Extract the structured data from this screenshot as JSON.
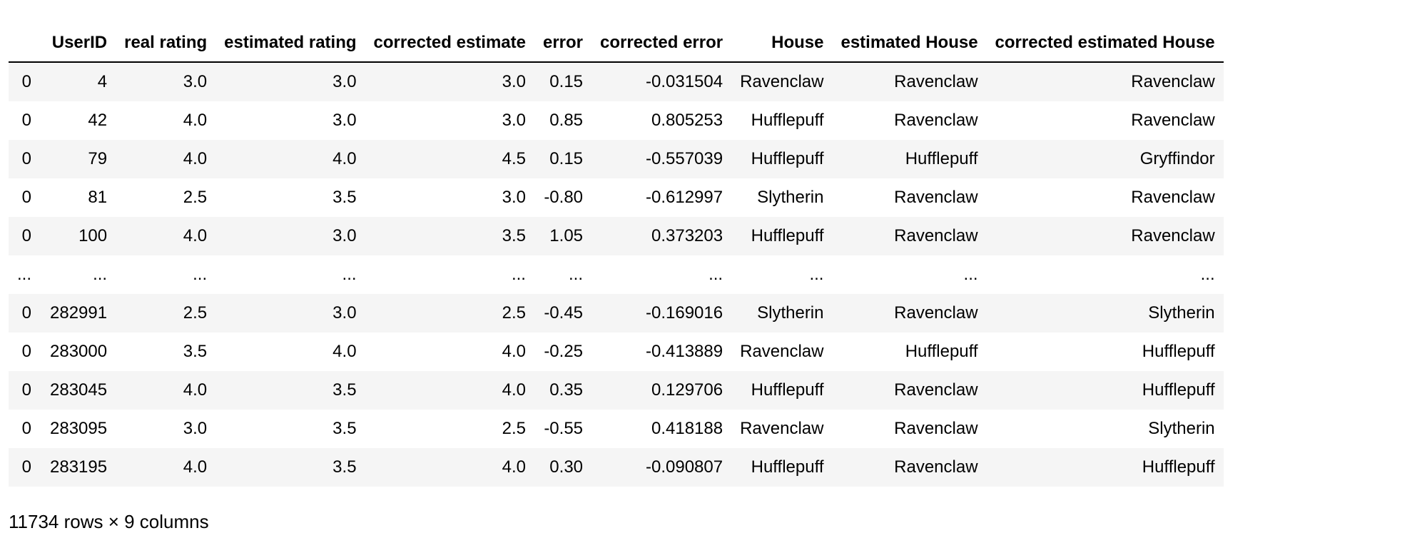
{
  "table": {
    "index_header": "",
    "columns": [
      "UserID",
      "real rating",
      "estimated rating",
      "corrected estimate",
      "error",
      "corrected error",
      "House",
      "estimated House",
      "corrected estimated House"
    ],
    "rows": [
      {
        "index": "0",
        "cells": [
          "4",
          "3.0",
          "3.0",
          "3.0",
          "0.15",
          "-0.031504",
          "Ravenclaw",
          "Ravenclaw",
          "Ravenclaw"
        ]
      },
      {
        "index": "0",
        "cells": [
          "42",
          "4.0",
          "3.0",
          "3.0",
          "0.85",
          "0.805253",
          "Hufflepuff",
          "Ravenclaw",
          "Ravenclaw"
        ]
      },
      {
        "index": "0",
        "cells": [
          "79",
          "4.0",
          "4.0",
          "4.5",
          "0.15",
          "-0.557039",
          "Hufflepuff",
          "Hufflepuff",
          "Gryffindor"
        ]
      },
      {
        "index": "0",
        "cells": [
          "81",
          "2.5",
          "3.5",
          "3.0",
          "-0.80",
          "-0.612997",
          "Slytherin",
          "Ravenclaw",
          "Ravenclaw"
        ]
      },
      {
        "index": "0",
        "cells": [
          "100",
          "4.0",
          "3.0",
          "3.5",
          "1.05",
          "0.373203",
          "Hufflepuff",
          "Ravenclaw",
          "Ravenclaw"
        ]
      },
      {
        "index": "...",
        "cells": [
          "...",
          "...",
          "...",
          "...",
          "...",
          "...",
          "...",
          "...",
          "..."
        ]
      },
      {
        "index": "0",
        "cells": [
          "282991",
          "2.5",
          "3.0",
          "2.5",
          "-0.45",
          "-0.169016",
          "Slytherin",
          "Ravenclaw",
          "Slytherin"
        ]
      },
      {
        "index": "0",
        "cells": [
          "283000",
          "3.5",
          "4.0",
          "4.0",
          "-0.25",
          "-0.413889",
          "Ravenclaw",
          "Hufflepuff",
          "Hufflepuff"
        ]
      },
      {
        "index": "0",
        "cells": [
          "283045",
          "4.0",
          "3.5",
          "4.0",
          "0.35",
          "0.129706",
          "Hufflepuff",
          "Ravenclaw",
          "Hufflepuff"
        ]
      },
      {
        "index": "0",
        "cells": [
          "283095",
          "3.0",
          "3.5",
          "2.5",
          "-0.55",
          "0.418188",
          "Ravenclaw",
          "Ravenclaw",
          "Slytherin"
        ]
      },
      {
        "index": "0",
        "cells": [
          "283195",
          "4.0",
          "3.5",
          "4.0",
          "0.30",
          "-0.090807",
          "Hufflepuff",
          "Ravenclaw",
          "Hufflepuff"
        ]
      }
    ]
  },
  "summary": {
    "shape_text": "11734 rows × 9 columns"
  },
  "colors": {
    "row_stripe": "#f5f5f5",
    "header_rule": "#000000",
    "text": "#000000"
  }
}
